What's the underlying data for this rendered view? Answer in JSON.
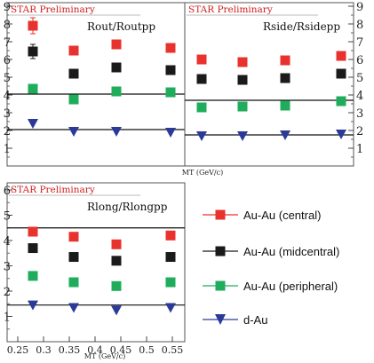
{
  "chart_data": [
    {
      "type": "scatter",
      "preliminary_label": "STAR Preliminary",
      "panel_label": "Rout/Routpp",
      "xlabel": "",
      "ylim": [
        0,
        9
      ],
      "yticks": [
        "1",
        "2",
        "3",
        "4",
        "5",
        "6",
        "7",
        "8",
        "9"
      ],
      "x": [
        0.245,
        0.33,
        0.42,
        0.53
      ],
      "series": [
        {
          "name": "Au-Au (central)",
          "values": [
            7.9,
            6.5,
            6.85,
            6.65
          ]
        },
        {
          "name": "Au-Au (midcentral)",
          "values": [
            6.45,
            5.2,
            5.55,
            5.4
          ]
        },
        {
          "name": "Au-Au (peripheral)",
          "values": [
            4.35,
            3.75,
            4.2,
            4.15
          ]
        },
        {
          "name": "d-Au",
          "values": [
            2.4,
            1.95,
            1.95,
            1.9
          ]
        }
      ],
      "hlines": [
        4.05,
        2.05
      ]
    },
    {
      "type": "scatter",
      "preliminary_label": "STAR Preliminary",
      "panel_label": "Rside/Rsidepp",
      "xlabel": "MT (GeV/c)",
      "ylim": [
        0,
        9
      ],
      "yticks": [
        "1",
        "2",
        "3",
        "4",
        "5",
        "6",
        "7",
        "8",
        "9"
      ],
      "x": [
        0.245,
        0.33,
        0.42,
        0.53
      ],
      "series": [
        {
          "name": "Au-Au (central)",
          "values": [
            6.0,
            5.85,
            5.95,
            6.2
          ]
        },
        {
          "name": "Au-Au (midcentral)",
          "values": [
            4.9,
            4.85,
            4.95,
            5.2
          ]
        },
        {
          "name": "Au-Au (peripheral)",
          "values": [
            3.3,
            3.35,
            3.4,
            3.65
          ]
        },
        {
          "name": "d-Au",
          "values": [
            1.7,
            1.7,
            1.75,
            1.8
          ]
        }
      ],
      "hlines": [
        3.7,
        1.75
      ]
    },
    {
      "type": "scatter",
      "preliminary_label": "STAR Preliminary",
      "panel_label": "Rlong/Rlongpp",
      "xlabel": "MT (GeV/c)",
      "xlim": [
        0.22,
        0.57
      ],
      "xticks": [
        "0.25",
        "0.3",
        "0.35",
        "0.4",
        "0.45",
        "0.5",
        "0.55"
      ],
      "ylim": [
        0,
        6
      ],
      "yticks": [
        "1",
        "2",
        "3",
        "4",
        "5",
        "6"
      ],
      "x": [
        0.245,
        0.33,
        0.42,
        0.53
      ],
      "series": [
        {
          "name": "Au-Au (central)",
          "values": [
            4.35,
            4.15,
            3.85,
            4.2
          ]
        },
        {
          "name": "Au-Au (midcentral)",
          "values": [
            3.7,
            3.35,
            3.2,
            3.35
          ]
        },
        {
          "name": "Au-Au (peripheral)",
          "values": [
            2.6,
            2.35,
            2.2,
            2.35
          ]
        },
        {
          "name": "d-Au",
          "values": [
            1.45,
            1.35,
            1.25,
            1.35
          ]
        }
      ],
      "hlines": [
        4.5,
        1.45
      ]
    }
  ],
  "legend": [
    {
      "label": "Au-Au (central)",
      "color": "#e8322e",
      "marker": "square"
    },
    {
      "label": "Au-Au (midcentral)",
      "color": "#1a1a1a",
      "marker": "square"
    },
    {
      "label": "Au-Au (peripheral)",
      "color": "#1fad5c",
      "marker": "square"
    },
    {
      "label": "d-Au",
      "color": "#2b3a98",
      "marker": "triangle-down"
    }
  ]
}
